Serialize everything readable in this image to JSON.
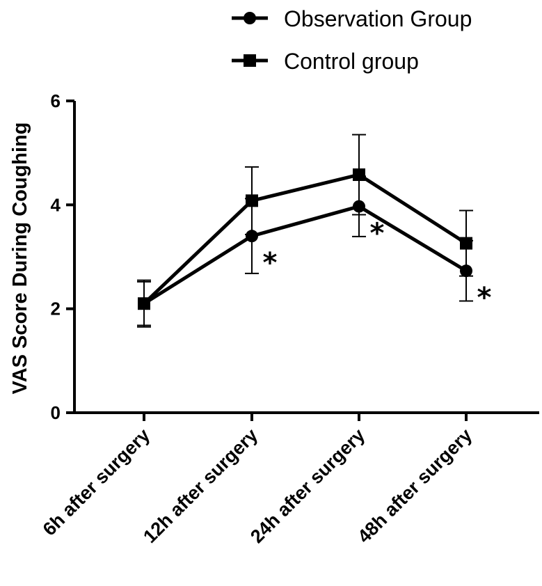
{
  "chart_data": {
    "type": "line",
    "title": "",
    "xlabel": "",
    "ylabel": "VAS Score During Coughing",
    "ylim": [
      0,
      6
    ],
    "yticks": [
      "0",
      "2",
      "4",
      "6"
    ],
    "categories": [
      "6h after surgery",
      "12h after surgery",
      "24h after surgery",
      "48h after surgery"
    ],
    "series": [
      {
        "name": "Observation Group",
        "marker": "circle",
        "values": [
          2.1,
          3.4,
          3.97,
          2.73
        ],
        "errors": [
          0.45,
          0.72,
          0.58,
          0.58
        ]
      },
      {
        "name": "Control group",
        "marker": "square",
        "values": [
          2.1,
          4.08,
          4.58,
          3.26
        ],
        "errors": [
          0.42,
          0.65,
          0.77,
          0.63
        ]
      }
    ],
    "significance": [
      "",
      "*",
      "*",
      "*"
    ],
    "legend": "top-right",
    "grid": false
  },
  "colors": {
    "line": "#000000",
    "background": "#ffffff"
  }
}
